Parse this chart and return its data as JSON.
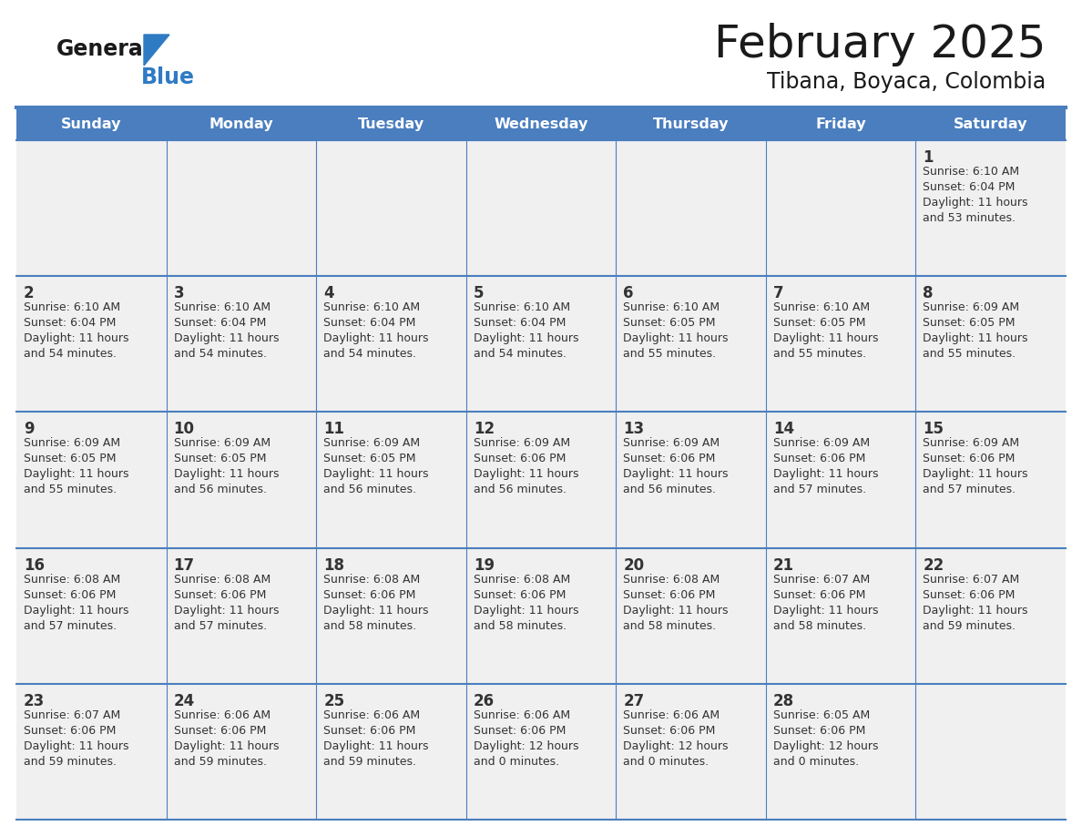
{
  "title": "February 2025",
  "subtitle": "Tibana, Boyaca, Colombia",
  "days_of_week": [
    "Sunday",
    "Monday",
    "Tuesday",
    "Wednesday",
    "Thursday",
    "Friday",
    "Saturday"
  ],
  "header_bg": "#4a7ebf",
  "header_text_color": "#FFFFFF",
  "cell_bg": "#f0f0f0",
  "cell_border_color": "#4a7ebf",
  "day_number_color": "#333333",
  "cell_text_color": "#333333",
  "title_color": "#1a1a1a",
  "subtitle_color": "#1a1a1a",
  "logo_general_color": "#1a1a1a",
  "logo_blue_color": "#2e7bc4",
  "background_color": "#FFFFFF",
  "weeks": [
    [
      null,
      null,
      null,
      null,
      null,
      null,
      {
        "day": 1,
        "sunrise": "6:10 AM",
        "sunset": "6:04 PM",
        "daylight": "11 hours\nand 53 minutes."
      }
    ],
    [
      {
        "day": 2,
        "sunrise": "6:10 AM",
        "sunset": "6:04 PM",
        "daylight": "11 hours\nand 54 minutes."
      },
      {
        "day": 3,
        "sunrise": "6:10 AM",
        "sunset": "6:04 PM",
        "daylight": "11 hours\nand 54 minutes."
      },
      {
        "day": 4,
        "sunrise": "6:10 AM",
        "sunset": "6:04 PM",
        "daylight": "11 hours\nand 54 minutes."
      },
      {
        "day": 5,
        "sunrise": "6:10 AM",
        "sunset": "6:04 PM",
        "daylight": "11 hours\nand 54 minutes."
      },
      {
        "day": 6,
        "sunrise": "6:10 AM",
        "sunset": "6:05 PM",
        "daylight": "11 hours\nand 55 minutes."
      },
      {
        "day": 7,
        "sunrise": "6:10 AM",
        "sunset": "6:05 PM",
        "daylight": "11 hours\nand 55 minutes."
      },
      {
        "day": 8,
        "sunrise": "6:09 AM",
        "sunset": "6:05 PM",
        "daylight": "11 hours\nand 55 minutes."
      }
    ],
    [
      {
        "day": 9,
        "sunrise": "6:09 AM",
        "sunset": "6:05 PM",
        "daylight": "11 hours\nand 55 minutes."
      },
      {
        "day": 10,
        "sunrise": "6:09 AM",
        "sunset": "6:05 PM",
        "daylight": "11 hours\nand 56 minutes."
      },
      {
        "day": 11,
        "sunrise": "6:09 AM",
        "sunset": "6:05 PM",
        "daylight": "11 hours\nand 56 minutes."
      },
      {
        "day": 12,
        "sunrise": "6:09 AM",
        "sunset": "6:06 PM",
        "daylight": "11 hours\nand 56 minutes."
      },
      {
        "day": 13,
        "sunrise": "6:09 AM",
        "sunset": "6:06 PM",
        "daylight": "11 hours\nand 56 minutes."
      },
      {
        "day": 14,
        "sunrise": "6:09 AM",
        "sunset": "6:06 PM",
        "daylight": "11 hours\nand 57 minutes."
      },
      {
        "day": 15,
        "sunrise": "6:09 AM",
        "sunset": "6:06 PM",
        "daylight": "11 hours\nand 57 minutes."
      }
    ],
    [
      {
        "day": 16,
        "sunrise": "6:08 AM",
        "sunset": "6:06 PM",
        "daylight": "11 hours\nand 57 minutes."
      },
      {
        "day": 17,
        "sunrise": "6:08 AM",
        "sunset": "6:06 PM",
        "daylight": "11 hours\nand 57 minutes."
      },
      {
        "day": 18,
        "sunrise": "6:08 AM",
        "sunset": "6:06 PM",
        "daylight": "11 hours\nand 58 minutes."
      },
      {
        "day": 19,
        "sunrise": "6:08 AM",
        "sunset": "6:06 PM",
        "daylight": "11 hours\nand 58 minutes."
      },
      {
        "day": 20,
        "sunrise": "6:08 AM",
        "sunset": "6:06 PM",
        "daylight": "11 hours\nand 58 minutes."
      },
      {
        "day": 21,
        "sunrise": "6:07 AM",
        "sunset": "6:06 PM",
        "daylight": "11 hours\nand 58 minutes."
      },
      {
        "day": 22,
        "sunrise": "6:07 AM",
        "sunset": "6:06 PM",
        "daylight": "11 hours\nand 59 minutes."
      }
    ],
    [
      {
        "day": 23,
        "sunrise": "6:07 AM",
        "sunset": "6:06 PM",
        "daylight": "11 hours\nand 59 minutes."
      },
      {
        "day": 24,
        "sunrise": "6:06 AM",
        "sunset": "6:06 PM",
        "daylight": "11 hours\nand 59 minutes."
      },
      {
        "day": 25,
        "sunrise": "6:06 AM",
        "sunset": "6:06 PM",
        "daylight": "11 hours\nand 59 minutes."
      },
      {
        "day": 26,
        "sunrise": "6:06 AM",
        "sunset": "6:06 PM",
        "daylight": "12 hours\nand 0 minutes."
      },
      {
        "day": 27,
        "sunrise": "6:06 AM",
        "sunset": "6:06 PM",
        "daylight": "12 hours\nand 0 minutes."
      },
      {
        "day": 28,
        "sunrise": "6:05 AM",
        "sunset": "6:06 PM",
        "daylight": "12 hours\nand 0 minutes."
      },
      null
    ]
  ]
}
